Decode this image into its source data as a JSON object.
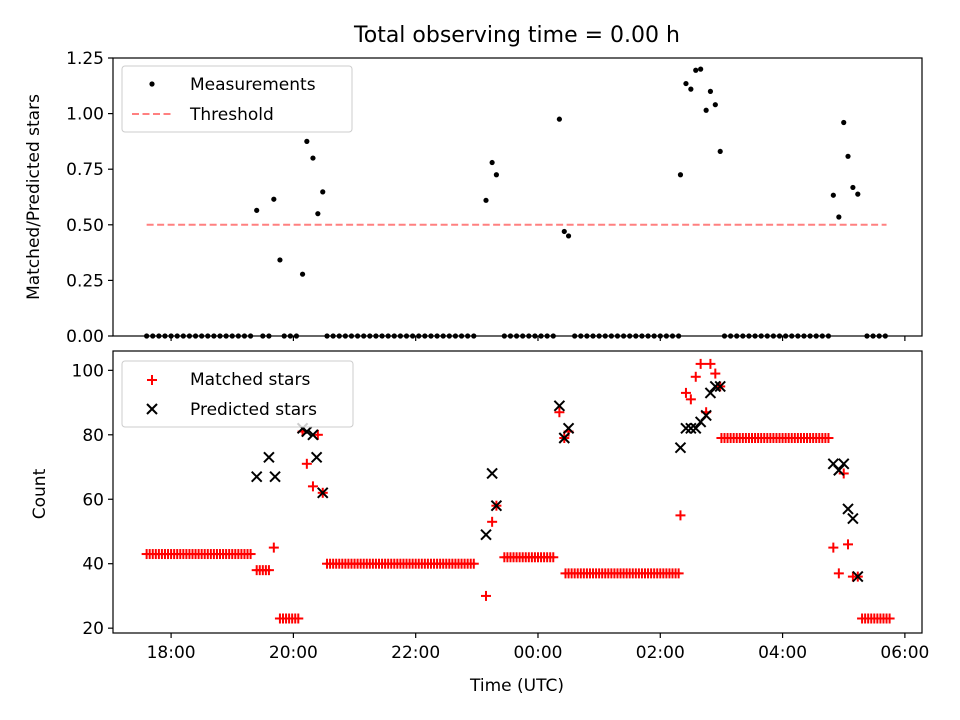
{
  "figure": {
    "title": "Total observing time = 0.00 h",
    "xlabel": "Time (UTC)"
  },
  "colors": {
    "measurement": "#000000",
    "threshold": "#ff8080",
    "matched": "#ff0000",
    "predicted": "#000000"
  },
  "chart_data": [
    {
      "type": "scatter",
      "panel": "top",
      "ylabel": "Matched/Predicted stars",
      "ylim": [
        0,
        1.25
      ],
      "yticks": [
        "0.00",
        "0.25",
        "0.50",
        "0.75",
        "1.00",
        "1.25"
      ],
      "xlim": [
        17.05,
        30.28
      ],
      "x_hour_ticks": [
        18,
        20,
        22,
        24,
        26,
        28,
        30
      ],
      "x_tick_labels": [],
      "grid": false,
      "legend_position": "top-left",
      "legend": [
        "Measurements",
        "Threshold"
      ],
      "series": [
        {
          "name": "Measurements",
          "marker": "dot",
          "points": [
            [
              17.6,
              0
            ],
            [
              17.7,
              0
            ],
            [
              17.8,
              0
            ],
            [
              17.9,
              0
            ],
            [
              18.0,
              0
            ],
            [
              18.1,
              0
            ],
            [
              18.2,
              0
            ],
            [
              18.3,
              0
            ],
            [
              18.4,
              0
            ],
            [
              18.5,
              0
            ],
            [
              18.6,
              0
            ],
            [
              18.7,
              0
            ],
            [
              18.8,
              0
            ],
            [
              18.9,
              0
            ],
            [
              19.0,
              0
            ],
            [
              19.1,
              0
            ],
            [
              19.2,
              0
            ],
            [
              19.3,
              0
            ],
            [
              19.4,
              0.565
            ],
            [
              19.5,
              0
            ],
            [
              19.6,
              0
            ],
            [
              19.68,
              0.615
            ],
            [
              19.78,
              0.342
            ],
            [
              19.85,
              0
            ],
            [
              19.95,
              0
            ],
            [
              20.05,
              0
            ],
            [
              20.15,
              0.278
            ],
            [
              20.22,
              0.875
            ],
            [
              20.32,
              0.8
            ],
            [
              20.4,
              0.55
            ],
            [
              20.48,
              0.648
            ],
            [
              20.55,
              0
            ],
            [
              20.65,
              0
            ],
            [
              20.75,
              0
            ],
            [
              20.85,
              0
            ],
            [
              20.95,
              0
            ],
            [
              21.05,
              0
            ],
            [
              21.15,
              0
            ],
            [
              21.25,
              0
            ],
            [
              21.35,
              0
            ],
            [
              21.45,
              0
            ],
            [
              21.55,
              0
            ],
            [
              21.65,
              0
            ],
            [
              21.75,
              0
            ],
            [
              21.85,
              0
            ],
            [
              21.95,
              0
            ],
            [
              22.05,
              0
            ],
            [
              22.15,
              0
            ],
            [
              22.25,
              0
            ],
            [
              22.35,
              0
            ],
            [
              22.45,
              0
            ],
            [
              22.55,
              0
            ],
            [
              22.65,
              0
            ],
            [
              22.75,
              0
            ],
            [
              22.85,
              0
            ],
            [
              22.95,
              0
            ],
            [
              23.15,
              0.61
            ],
            [
              23.25,
              0.78
            ],
            [
              23.32,
              0.725
            ],
            [
              23.45,
              0
            ],
            [
              23.55,
              0
            ],
            [
              23.65,
              0
            ],
            [
              23.75,
              0
            ],
            [
              23.85,
              0
            ],
            [
              23.95,
              0
            ],
            [
              24.05,
              0
            ],
            [
              24.15,
              0
            ],
            [
              24.25,
              0
            ],
            [
              24.35,
              0.975
            ],
            [
              24.43,
              0.47
            ],
            [
              24.5,
              0.45
            ],
            [
              24.6,
              0
            ],
            [
              24.7,
              0
            ],
            [
              24.8,
              0
            ],
            [
              24.9,
              0
            ],
            [
              25.0,
              0
            ],
            [
              25.1,
              0
            ],
            [
              25.2,
              0
            ],
            [
              25.3,
              0
            ],
            [
              25.4,
              0
            ],
            [
              25.5,
              0
            ],
            [
              25.6,
              0
            ],
            [
              25.7,
              0
            ],
            [
              25.8,
              0
            ],
            [
              25.9,
              0
            ],
            [
              26.0,
              0
            ],
            [
              26.1,
              0
            ],
            [
              26.2,
              0
            ],
            [
              26.3,
              0
            ],
            [
              26.33,
              0.725
            ],
            [
              26.42,
              1.135
            ],
            [
              26.5,
              1.11
            ],
            [
              26.58,
              1.195
            ],
            [
              26.66,
              1.2
            ],
            [
              26.75,
              1.015
            ],
            [
              26.82,
              1.1
            ],
            [
              26.9,
              1.04
            ],
            [
              26.98,
              0.83
            ],
            [
              27.05,
              0
            ],
            [
              27.15,
              0
            ],
            [
              27.25,
              0
            ],
            [
              27.35,
              0
            ],
            [
              27.45,
              0
            ],
            [
              27.55,
              0
            ],
            [
              27.65,
              0
            ],
            [
              27.75,
              0
            ],
            [
              27.85,
              0
            ],
            [
              27.95,
              0
            ],
            [
              28.05,
              0
            ],
            [
              28.15,
              0
            ],
            [
              28.25,
              0
            ],
            [
              28.35,
              0
            ],
            [
              28.45,
              0
            ],
            [
              28.55,
              0
            ],
            [
              28.65,
              0
            ],
            [
              28.75,
              0
            ],
            [
              28.83,
              0.633
            ],
            [
              28.92,
              0.535
            ],
            [
              29.0,
              0.96
            ],
            [
              29.07,
              0.808
            ],
            [
              29.15,
              0.668
            ],
            [
              29.23,
              0.638
            ],
            [
              29.38,
              0
            ],
            [
              29.48,
              0
            ],
            [
              29.58,
              0
            ],
            [
              29.68,
              0
            ]
          ]
        },
        {
          "name": "Threshold",
          "style": "dashed",
          "x_range": [
            17.6,
            29.7
          ],
          "value": 0.5
        }
      ]
    },
    {
      "type": "scatter",
      "panel": "bottom",
      "ylabel": "Count",
      "ylim": [
        18.5,
        106
      ],
      "yticks": [
        "20",
        "40",
        "60",
        "80",
        "100"
      ],
      "xlim": [
        17.05,
        30.28
      ],
      "x_hour_ticks": [
        18,
        20,
        22,
        24,
        26,
        28,
        30
      ],
      "x_tick_labels": [
        "18:00",
        "20:00",
        "22:00",
        "00:00",
        "02:00",
        "04:00",
        "06:00"
      ],
      "grid": false,
      "legend_position": "top-left",
      "legend": [
        "Matched stars",
        "Predicted stars"
      ],
      "series": [
        {
          "name": "Matched stars",
          "marker": "plus",
          "runs": [
            {
              "from": 17.6,
              "to": 19.3,
              "value": 43
            },
            {
              "from": 19.4,
              "to": 19.6,
              "value": 38
            },
            {
              "from": 19.78,
              "to": 20.12,
              "value": 23
            },
            {
              "from": 20.55,
              "to": 22.95,
              "value": 40
            },
            {
              "from": 23.45,
              "to": 24.25,
              "value": 42
            },
            {
              "from": 24.45,
              "to": 26.3,
              "value": 37
            },
            {
              "from": 27.0,
              "to": 28.75,
              "value": 79
            },
            {
              "from": 29.3,
              "to": 29.75,
              "value": 23
            }
          ],
          "points": [
            [
              19.68,
              45
            ],
            [
              20.15,
              81
            ],
            [
              20.22,
              71
            ],
            [
              20.32,
              64
            ],
            [
              20.4,
              80
            ],
            [
              20.48,
              62
            ],
            [
              23.15,
              30
            ],
            [
              23.25,
              53
            ],
            [
              23.32,
              58
            ],
            [
              24.35,
              87
            ],
            [
              24.43,
              79
            ],
            [
              24.5,
              81
            ],
            [
              26.33,
              55
            ],
            [
              26.42,
              93
            ],
            [
              26.5,
              91
            ],
            [
              26.58,
              98
            ],
            [
              26.66,
              102
            ],
            [
              26.75,
              87
            ],
            [
              26.82,
              102
            ],
            [
              26.9,
              99
            ],
            [
              26.98,
              95
            ],
            [
              28.83,
              45
            ],
            [
              28.92,
              37
            ],
            [
              29.0,
              68
            ],
            [
              29.07,
              46
            ],
            [
              29.15,
              36
            ],
            [
              29.23,
              36
            ]
          ]
        },
        {
          "name": "Predicted stars",
          "marker": "x",
          "points": [
            [
              19.4,
              67
            ],
            [
              19.6,
              73
            ],
            [
              19.7,
              67
            ],
            [
              20.15,
              82
            ],
            [
              20.22,
              81
            ],
            [
              20.32,
              80
            ],
            [
              20.38,
              73
            ],
            [
              20.48,
              62
            ],
            [
              23.15,
              49
            ],
            [
              23.25,
              68
            ],
            [
              23.32,
              58
            ],
            [
              24.35,
              89
            ],
            [
              24.43,
              79
            ],
            [
              24.5,
              82
            ],
            [
              26.33,
              76
            ],
            [
              26.42,
              82
            ],
            [
              26.5,
              82
            ],
            [
              26.58,
              82
            ],
            [
              26.66,
              84
            ],
            [
              26.75,
              86
            ],
            [
              26.82,
              93
            ],
            [
              26.9,
              95
            ],
            [
              26.98,
              95
            ],
            [
              28.83,
              71
            ],
            [
              28.92,
              69
            ],
            [
              29.0,
              71
            ],
            [
              29.07,
              57
            ],
            [
              29.15,
              54
            ],
            [
              29.23,
              36
            ]
          ]
        }
      ]
    }
  ]
}
